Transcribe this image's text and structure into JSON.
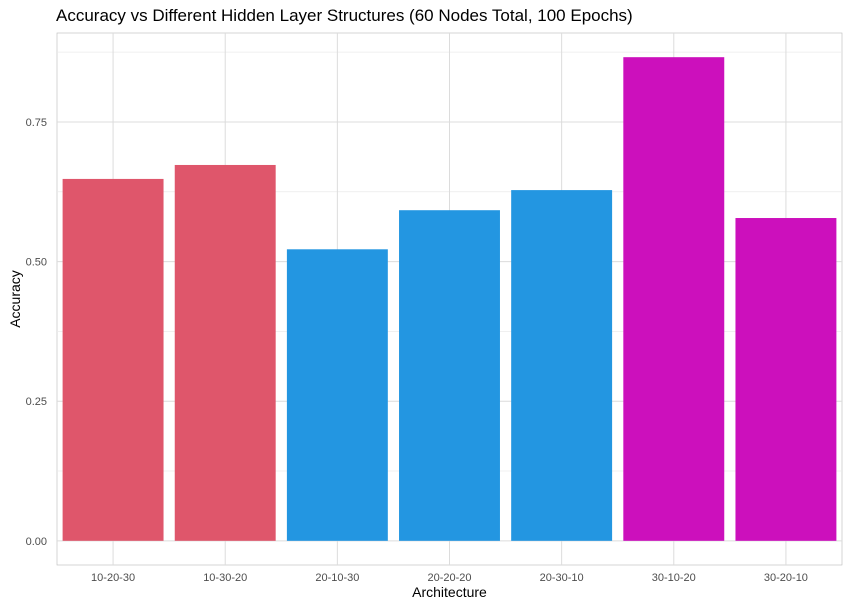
{
  "chart_data": {
    "type": "bar",
    "title": "Accuracy vs Different Hidden Layer Structures (60 Nodes Total, 100 Epochs)",
    "xlabel": "Architecture",
    "ylabel": "Accuracy",
    "categories": [
      "10-20-30",
      "10-30-20",
      "20-10-30",
      "20-20-20",
      "20-30-10",
      "30-10-20",
      "30-20-10"
    ],
    "values": [
      0.648,
      0.673,
      0.522,
      0.592,
      0.628,
      0.866,
      0.578
    ],
    "bar_colors": [
      "#df566b",
      "#df566b",
      "#2396e1",
      "#2396e1",
      "#2396e1",
      "#cc10bc",
      "#cc10bc"
    ],
    "yticks": [
      0.0,
      0.25,
      0.5,
      0.75
    ],
    "ytick_labels": [
      "0.00",
      "0.25",
      "0.50",
      "0.75"
    ],
    "ylim": [
      -0.0433,
      0.9093
    ],
    "grid": true,
    "legend": "none"
  }
}
